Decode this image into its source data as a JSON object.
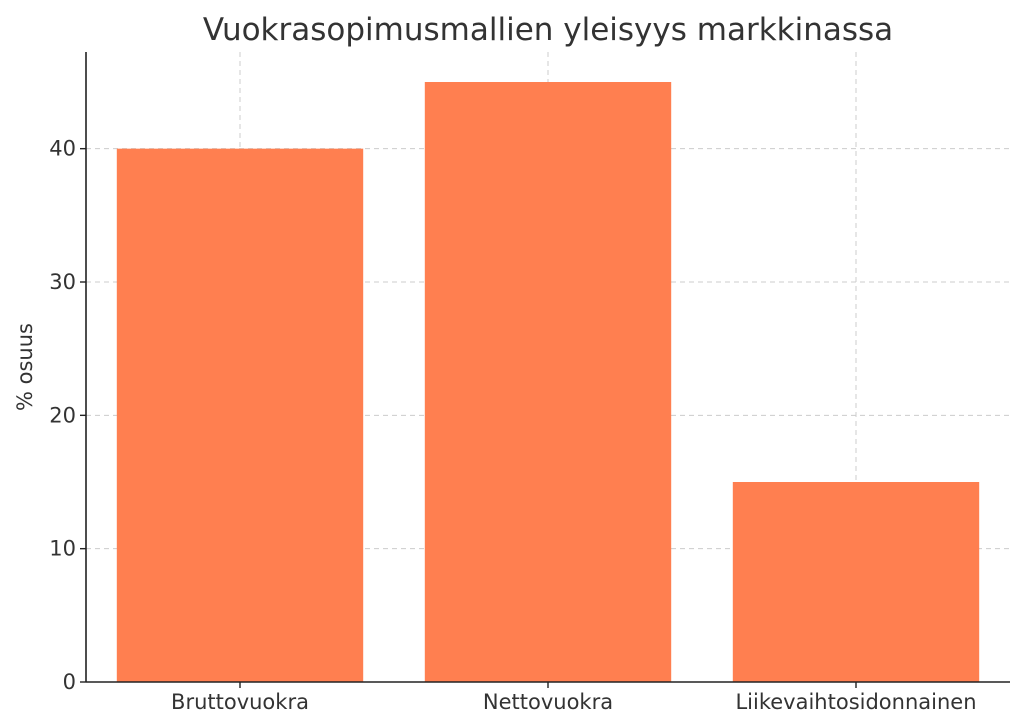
{
  "chart_data": {
    "type": "bar",
    "title": "Vuokrasopimusmallien yleisyys markkinassa",
    "xlabel": "",
    "ylabel": "% osuus",
    "categories": [
      "Bruttovuokra",
      "Nettovuokra",
      "Liikevaihtosidonnainen"
    ],
    "values": [
      40,
      45,
      15
    ],
    "ylim": [
      0,
      47.25
    ],
    "yticks": [
      0,
      10,
      20,
      30,
      40
    ],
    "grid": true,
    "legend": "none",
    "bar_color": "#ff7f50"
  }
}
